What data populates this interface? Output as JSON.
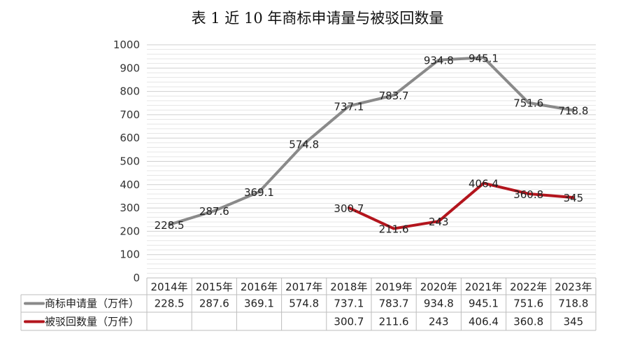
{
  "chart_data": {
    "type": "line",
    "title": "表 1 近 10 年商标申请量与被驳回数量",
    "categories": [
      "2014年",
      "2015年",
      "2016年",
      "2017年",
      "2018年",
      "2019年",
      "2020年",
      "2021年",
      "2022年",
      "2023年"
    ],
    "ylim": [
      0,
      1000
    ],
    "yticks": [
      "0",
      "100",
      "200",
      "300",
      "400",
      "500",
      "600",
      "700",
      "800",
      "900",
      "1000"
    ],
    "grid": true,
    "legend": "data-table-bottom",
    "series": [
      {
        "name": "商标申请量（万件）",
        "color": "#8a8a8a",
        "values": [
          228.5,
          287.6,
          369.1,
          574.8,
          737.1,
          783.7,
          934.8,
          945.1,
          751.6,
          718.8
        ],
        "labels": [
          "228.5",
          "287.6",
          "369.1",
          "574.8",
          "737.1",
          "783.7",
          "934.8",
          "945.1",
          "751.6",
          "718.8"
        ]
      },
      {
        "name": "被驳回数量（万件）",
        "color": "#b3151d",
        "values": [
          null,
          null,
          null,
          null,
          300.7,
          211.6,
          243,
          406.4,
          360.8,
          345
        ],
        "labels": [
          "",
          "",
          "",
          "",
          "300.7",
          "211.6",
          "243",
          "406.4",
          "360.8",
          "345"
        ]
      }
    ]
  }
}
